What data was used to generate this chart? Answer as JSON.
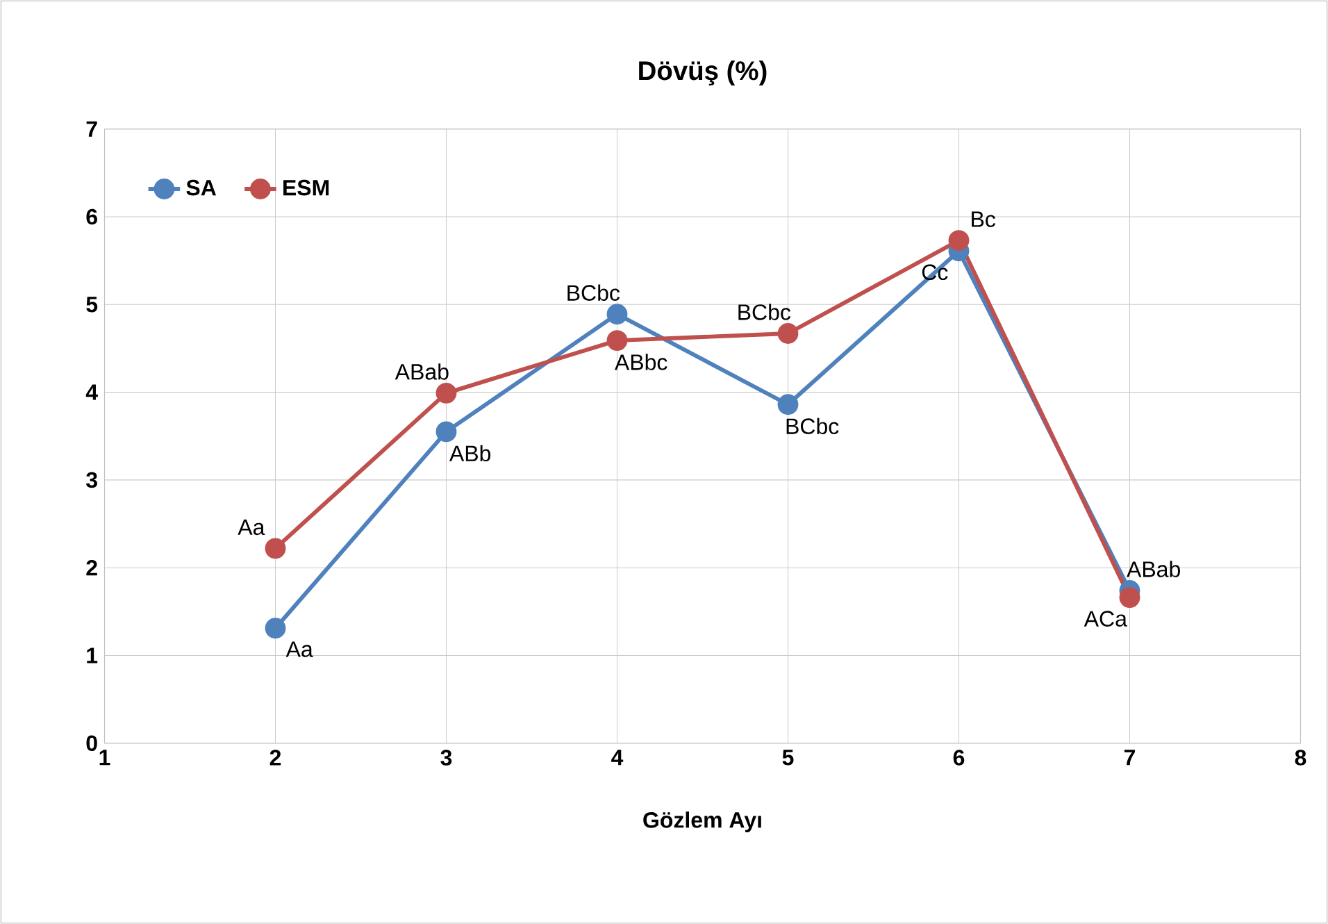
{
  "chart_data": {
    "type": "line",
    "title": "Dövüş (%)",
    "xlabel": "Gözlem Ayı",
    "x": [
      2,
      3,
      4,
      5,
      6,
      7
    ],
    "series": [
      {
        "name": "SA",
        "color": "#4f81bd",
        "values": [
          1.31,
          3.55,
          4.89,
          3.86,
          5.61,
          1.74
        ]
      },
      {
        "name": "ESM",
        "color": "#c0504d",
        "values": [
          2.22,
          3.99,
          4.59,
          4.67,
          5.73,
          1.66
        ]
      }
    ],
    "xlim": [
      1,
      8
    ],
    "xticks": [
      1,
      2,
      3,
      4,
      5,
      6,
      7,
      8
    ],
    "ylim": [
      0,
      7
    ],
    "yticks": [
      0,
      1,
      2,
      3,
      4,
      5,
      6,
      7
    ],
    "grid": true,
    "legend": "top left",
    "marker": "circle",
    "line_style": "solid",
    "annotations": [
      {
        "text": "Aa",
        "x": 2,
        "y": 1.31
      },
      {
        "text": "ABb",
        "x": 3,
        "y": 3.55
      },
      {
        "text": "BCbc",
        "x": 4,
        "y": 4.89
      },
      {
        "text": "BCbc",
        "x": 5,
        "y": 3.86
      },
      {
        "text": "Cc",
        "x": 6,
        "y": 5.61
      },
      {
        "text": "ABab",
        "x": 7,
        "y": 1.74
      },
      {
        "text": "Aa",
        "x": 2,
        "y": 2.22
      },
      {
        "text": "ABab",
        "x": 3,
        "y": 3.99
      },
      {
        "text": "ABbc",
        "x": 4,
        "y": 4.59
      },
      {
        "text": "BCbc",
        "x": 5,
        "y": 4.67
      },
      {
        "text": "Bc",
        "x": 6,
        "y": 5.73
      },
      {
        "text": "ACa",
        "x": 7,
        "y": 1.66
      }
    ]
  }
}
